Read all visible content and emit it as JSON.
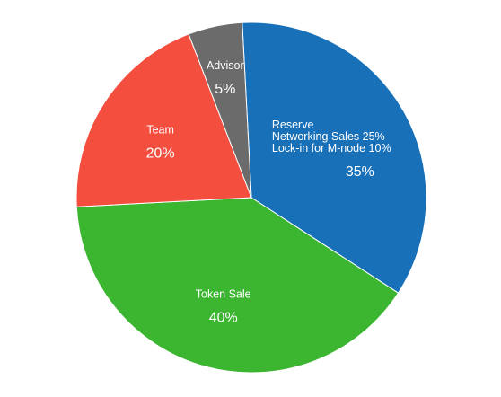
{
  "chart_data": {
    "type": "pie",
    "title": "",
    "legend": "none",
    "slices": [
      {
        "label_lines": [
          "Reserve",
          "Networking Sales 25%",
          "Lock-in for M-node 10%"
        ],
        "value": 35,
        "value_label": "35%",
        "color": "#1870b8"
      },
      {
        "label_lines": [
          "Token Sale"
        ],
        "value": 40,
        "value_label": "40%",
        "color": "#3cb531"
      },
      {
        "label_lines": [
          "Team"
        ],
        "value": 20,
        "value_label": "20%",
        "color": "#f44e3e"
      },
      {
        "label_lines": [
          "Advisor"
        ],
        "value": 5,
        "value_label": "5%",
        "color": "#6b6b6b"
      }
    ]
  }
}
